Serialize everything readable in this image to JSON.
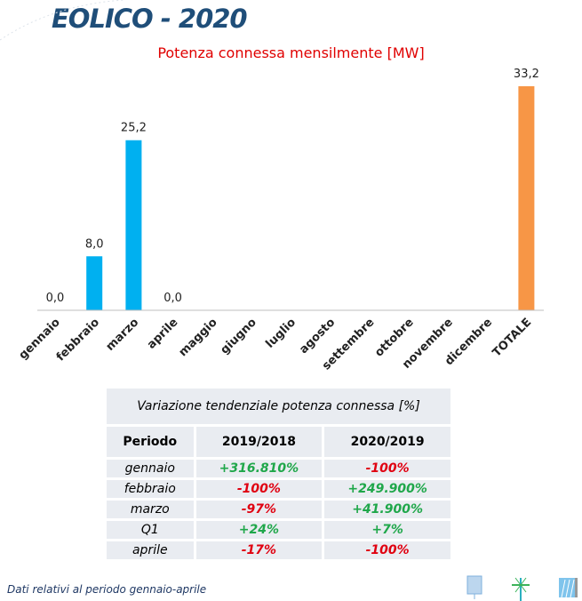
{
  "header": {
    "title": "EOLICO - 2020"
  },
  "chart_data": {
    "type": "bar",
    "title": "Potenza connessa mensilmente [MW]",
    "categories": [
      "gennaio",
      "febbraio",
      "marzo",
      "aprile",
      "maggio",
      "giugno",
      "luglio",
      "agosto",
      "settembre",
      "ottobre",
      "novembre",
      "dicembre",
      "TOTALE"
    ],
    "values": [
      0,
      8.0,
      25.2,
      0,
      null,
      null,
      null,
      null,
      null,
      null,
      null,
      null,
      33.2
    ],
    "labels": [
      "0,0",
      "8,0",
      "25,2",
      "0,0",
      "",
      "",
      "",
      "",
      "",
      "",
      "",
      "",
      "33,2"
    ],
    "colors": {
      "month": "#00b0f0",
      "total": "#f79646"
    },
    "xlabel": "",
    "ylabel": "",
    "ylim": [
      0,
      33.2
    ]
  },
  "table": {
    "caption": "Variazione tendenziale potenza connessa [%]",
    "headers": [
      "Periodo",
      "2019/2018",
      "2020/2019"
    ],
    "rows": [
      [
        "gennaio",
        "+316.810%",
        "-100%"
      ],
      [
        "febbraio",
        "-100%",
        "+249.900%"
      ],
      [
        "marzo",
        "-97%",
        "+41.900%"
      ],
      [
        "Q1",
        "+24%",
        "+7%"
      ],
      [
        "aprile",
        "-17%",
        "-100%"
      ]
    ]
  },
  "footer": {
    "note": "Dati relativi al periodo gennaio-aprile"
  }
}
